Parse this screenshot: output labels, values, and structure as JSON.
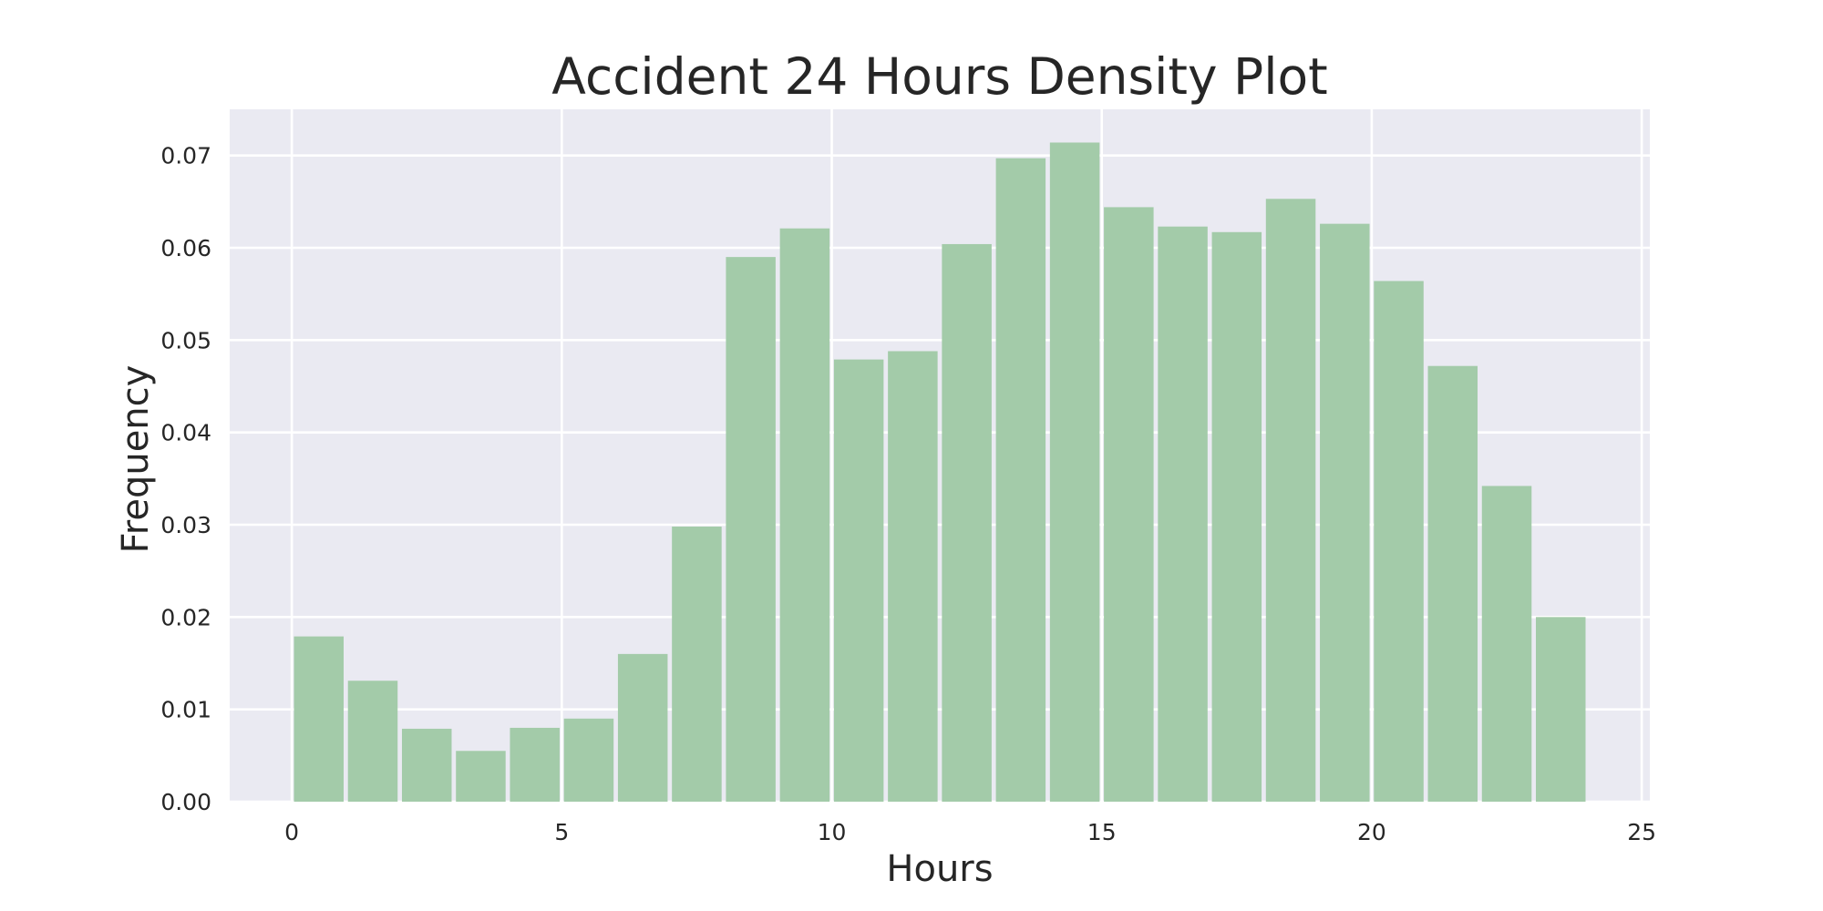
{
  "chart_data": {
    "type": "bar",
    "title": "Accident 24 Hours Density Plot",
    "xlabel": "Hours",
    "ylabel": "Frequency",
    "xlim": [
      -1.15,
      25.15
    ],
    "ylim": [
      0.0,
      0.075
    ],
    "xticks": [
      0,
      5,
      10,
      15,
      20,
      25
    ],
    "xtick_labels": [
      "0",
      "5",
      "10",
      "15",
      "20",
      "25"
    ],
    "yticks": [
      0.0,
      0.01,
      0.02,
      0.03,
      0.04,
      0.05,
      0.06,
      0.07
    ],
    "ytick_labels": [
      "0.00",
      "0.01",
      "0.02",
      "0.03",
      "0.04",
      "0.05",
      "0.06",
      "0.07"
    ],
    "grid": true,
    "bins": [
      {
        "x0": 0.0,
        "x1": 1.0,
        "value": 0.0179
      },
      {
        "x0": 1.0,
        "x1": 2.0,
        "value": 0.0131
      },
      {
        "x0": 2.0,
        "x1": 3.0,
        "value": 0.0079
      },
      {
        "x0": 3.0,
        "x1": 4.0,
        "value": 0.0055
      },
      {
        "x0": 4.0,
        "x1": 5.0,
        "value": 0.008
      },
      {
        "x0": 5.0,
        "x1": 6.0,
        "value": 0.009
      },
      {
        "x0": 6.0,
        "x1": 7.0,
        "value": 0.016
      },
      {
        "x0": 7.0,
        "x1": 8.0,
        "value": 0.0298
      },
      {
        "x0": 8.0,
        "x1": 9.0,
        "value": 0.059
      },
      {
        "x0": 9.0,
        "x1": 10.0,
        "value": 0.0621
      },
      {
        "x0": 10.0,
        "x1": 11.0,
        "value": 0.0479
      },
      {
        "x0": 11.0,
        "x1": 12.0,
        "value": 0.0488
      },
      {
        "x0": 12.0,
        "x1": 13.0,
        "value": 0.0604
      },
      {
        "x0": 13.0,
        "x1": 14.0,
        "value": 0.0697
      },
      {
        "x0": 14.0,
        "x1": 15.0,
        "value": 0.0714
      },
      {
        "x0": 15.0,
        "x1": 16.0,
        "value": 0.0644
      },
      {
        "x0": 16.0,
        "x1": 17.0,
        "value": 0.0623
      },
      {
        "x0": 17.0,
        "x1": 18.0,
        "value": 0.0617
      },
      {
        "x0": 18.0,
        "x1": 19.0,
        "value": 0.0653
      },
      {
        "x0": 19.0,
        "x1": 20.0,
        "value": 0.0626
      },
      {
        "x0": 20.0,
        "x1": 21.0,
        "value": 0.0564
      },
      {
        "x0": 21.0,
        "x1": 22.0,
        "value": 0.0472
      },
      {
        "x0": 22.0,
        "x1": 23.0,
        "value": 0.0342
      },
      {
        "x0": 23.0,
        "x1": 24.0,
        "value": 0.02
      }
    ],
    "colors": {
      "bar": "#a3cba9",
      "plot_background": "#eaeaf2",
      "grid": "#ffffff",
      "text": "#262626"
    }
  }
}
